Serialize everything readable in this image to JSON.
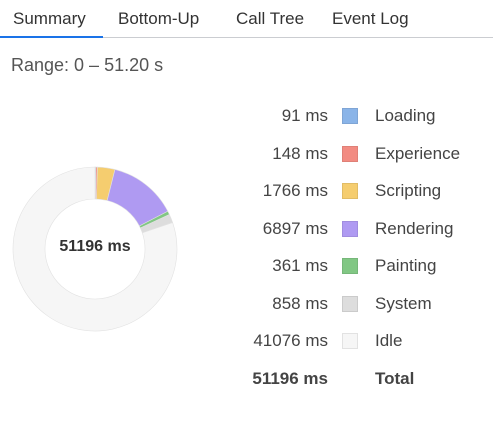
{
  "tabs": [
    {
      "label": "Summary",
      "active": true
    },
    {
      "label": "Bottom-Up",
      "active": false
    },
    {
      "label": "Call Tree",
      "active": false
    },
    {
      "label": "Event Log",
      "active": false
    }
  ],
  "range": "Range: 0 – 51.20 s",
  "chart_total": "51196 ms",
  "legend": [
    {
      "value": "91 ms",
      "label": "Loading",
      "color": "#8ab4e8",
      "ms": 91
    },
    {
      "value": "148 ms",
      "label": "Experience",
      "color": "#f28b82",
      "ms": 148
    },
    {
      "value": "1766 ms",
      "label": "Scripting",
      "color": "#f5cd6f",
      "ms": 1766
    },
    {
      "value": "6897 ms",
      "label": "Rendering",
      "color": "#af9af2",
      "ms": 6897
    },
    {
      "value": "361 ms",
      "label": "Painting",
      "color": "#81c784",
      "ms": 361
    },
    {
      "value": "858 ms",
      "label": "System",
      "color": "#dddddd",
      "ms": 858
    },
    {
      "value": "41076 ms",
      "label": "Idle",
      "color": "#f6f6f6",
      "ms": 41076
    }
  ],
  "total": {
    "value": "51196 ms",
    "label": "Total"
  },
  "chart_data": {
    "type": "pie",
    "categories": [
      "Loading",
      "Experience",
      "Scripting",
      "Rendering",
      "Painting",
      "System",
      "Idle"
    ],
    "values": [
      91,
      148,
      1766,
      6897,
      361,
      858,
      41076
    ],
    "colors": [
      "#8ab4e8",
      "#f28b82",
      "#f5cd6f",
      "#af9af2",
      "#81c784",
      "#dddddd",
      "#f6f6f6"
    ],
    "center_label": "51196 ms",
    "donut": true
  }
}
